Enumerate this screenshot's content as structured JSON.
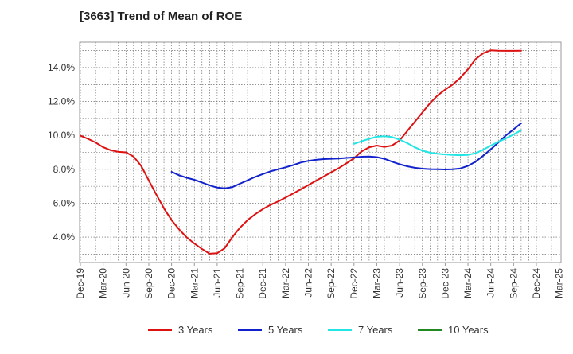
{
  "title": "[3663]  Trend of Mean of ROE",
  "chart_data": {
    "type": "line",
    "title": "[3663]  Trend of Mean of ROE",
    "xlabel": "",
    "ylabel": "",
    "x_ticks": [
      "Dec-19",
      "Mar-20",
      "Jun-20",
      "Sep-20",
      "Dec-20",
      "Mar-21",
      "Jun-21",
      "Sep-21",
      "Dec-21",
      "Mar-22",
      "Jun-22",
      "Sep-22",
      "Dec-22",
      "Mar-23",
      "Jun-23",
      "Sep-23",
      "Dec-23",
      "Mar-24",
      "Jun-24",
      "Sep-24",
      "Dec-24",
      "Mar-25"
    ],
    "y_ticks": [
      {
        "value": 4,
        "label": "4.0%"
      },
      {
        "value": 6,
        "label": "6.0%"
      },
      {
        "value": 8,
        "label": "8.0%"
      },
      {
        "value": 10,
        "label": "10.0%"
      },
      {
        "value": 12,
        "label": "12.0%"
      },
      {
        "value": 14,
        "label": "14.0%"
      }
    ],
    "ylim": [
      2.5,
      15.5
    ],
    "grid": true,
    "legend_position": "bottom",
    "series": [
      {
        "name": "3 Years",
        "color": "#dd1111",
        "start_index": 0,
        "values": [
          9.98,
          9.8,
          9.58,
          9.3,
          9.12,
          9.03,
          9.0,
          8.75,
          8.2,
          7.35,
          6.5,
          5.7,
          5.0,
          4.45,
          3.98,
          3.62,
          3.3,
          3.02,
          3.05,
          3.35,
          4.0,
          4.55,
          5.0,
          5.35,
          5.65,
          5.9,
          6.1,
          6.33,
          6.57,
          6.82,
          7.07,
          7.32,
          7.57,
          7.82,
          8.07,
          8.35,
          8.65,
          9.05,
          9.3,
          9.4,
          9.32,
          9.4,
          9.7,
          10.25,
          10.8,
          11.35,
          11.9,
          12.35,
          12.7,
          13.0,
          13.4,
          13.9,
          14.5,
          14.85,
          15.02,
          15.0,
          14.99,
          14.99,
          15.0
        ]
      },
      {
        "name": "5 Years",
        "color": "#1122cc",
        "start_index": 12,
        "values": [
          7.85,
          7.65,
          7.5,
          7.38,
          7.22,
          7.05,
          6.92,
          6.88,
          6.95,
          7.15,
          7.35,
          7.55,
          7.72,
          7.88,
          8.0,
          8.12,
          8.25,
          8.4,
          8.5,
          8.56,
          8.6,
          8.62,
          8.64,
          8.67,
          8.7,
          8.74,
          8.75,
          8.72,
          8.62,
          8.45,
          8.3,
          8.18,
          8.09,
          8.04,
          8.01,
          8.0,
          7.99,
          8.0,
          8.05,
          8.2,
          8.45,
          8.8,
          9.18,
          9.58,
          10.0,
          10.35,
          10.72
        ]
      },
      {
        "name": "7 Years",
        "color": "#22e5e5",
        "start_index": 36,
        "values": [
          9.5,
          9.65,
          9.8,
          9.92,
          9.95,
          9.9,
          9.75,
          9.55,
          9.3,
          9.1,
          8.98,
          8.92,
          8.88,
          8.85,
          8.83,
          8.85,
          8.95,
          9.15,
          9.4,
          9.62,
          9.82,
          10.05,
          10.3
        ]
      },
      {
        "name": "10 Years",
        "color": "#228822",
        "start_index": 0,
        "values": []
      }
    ]
  }
}
